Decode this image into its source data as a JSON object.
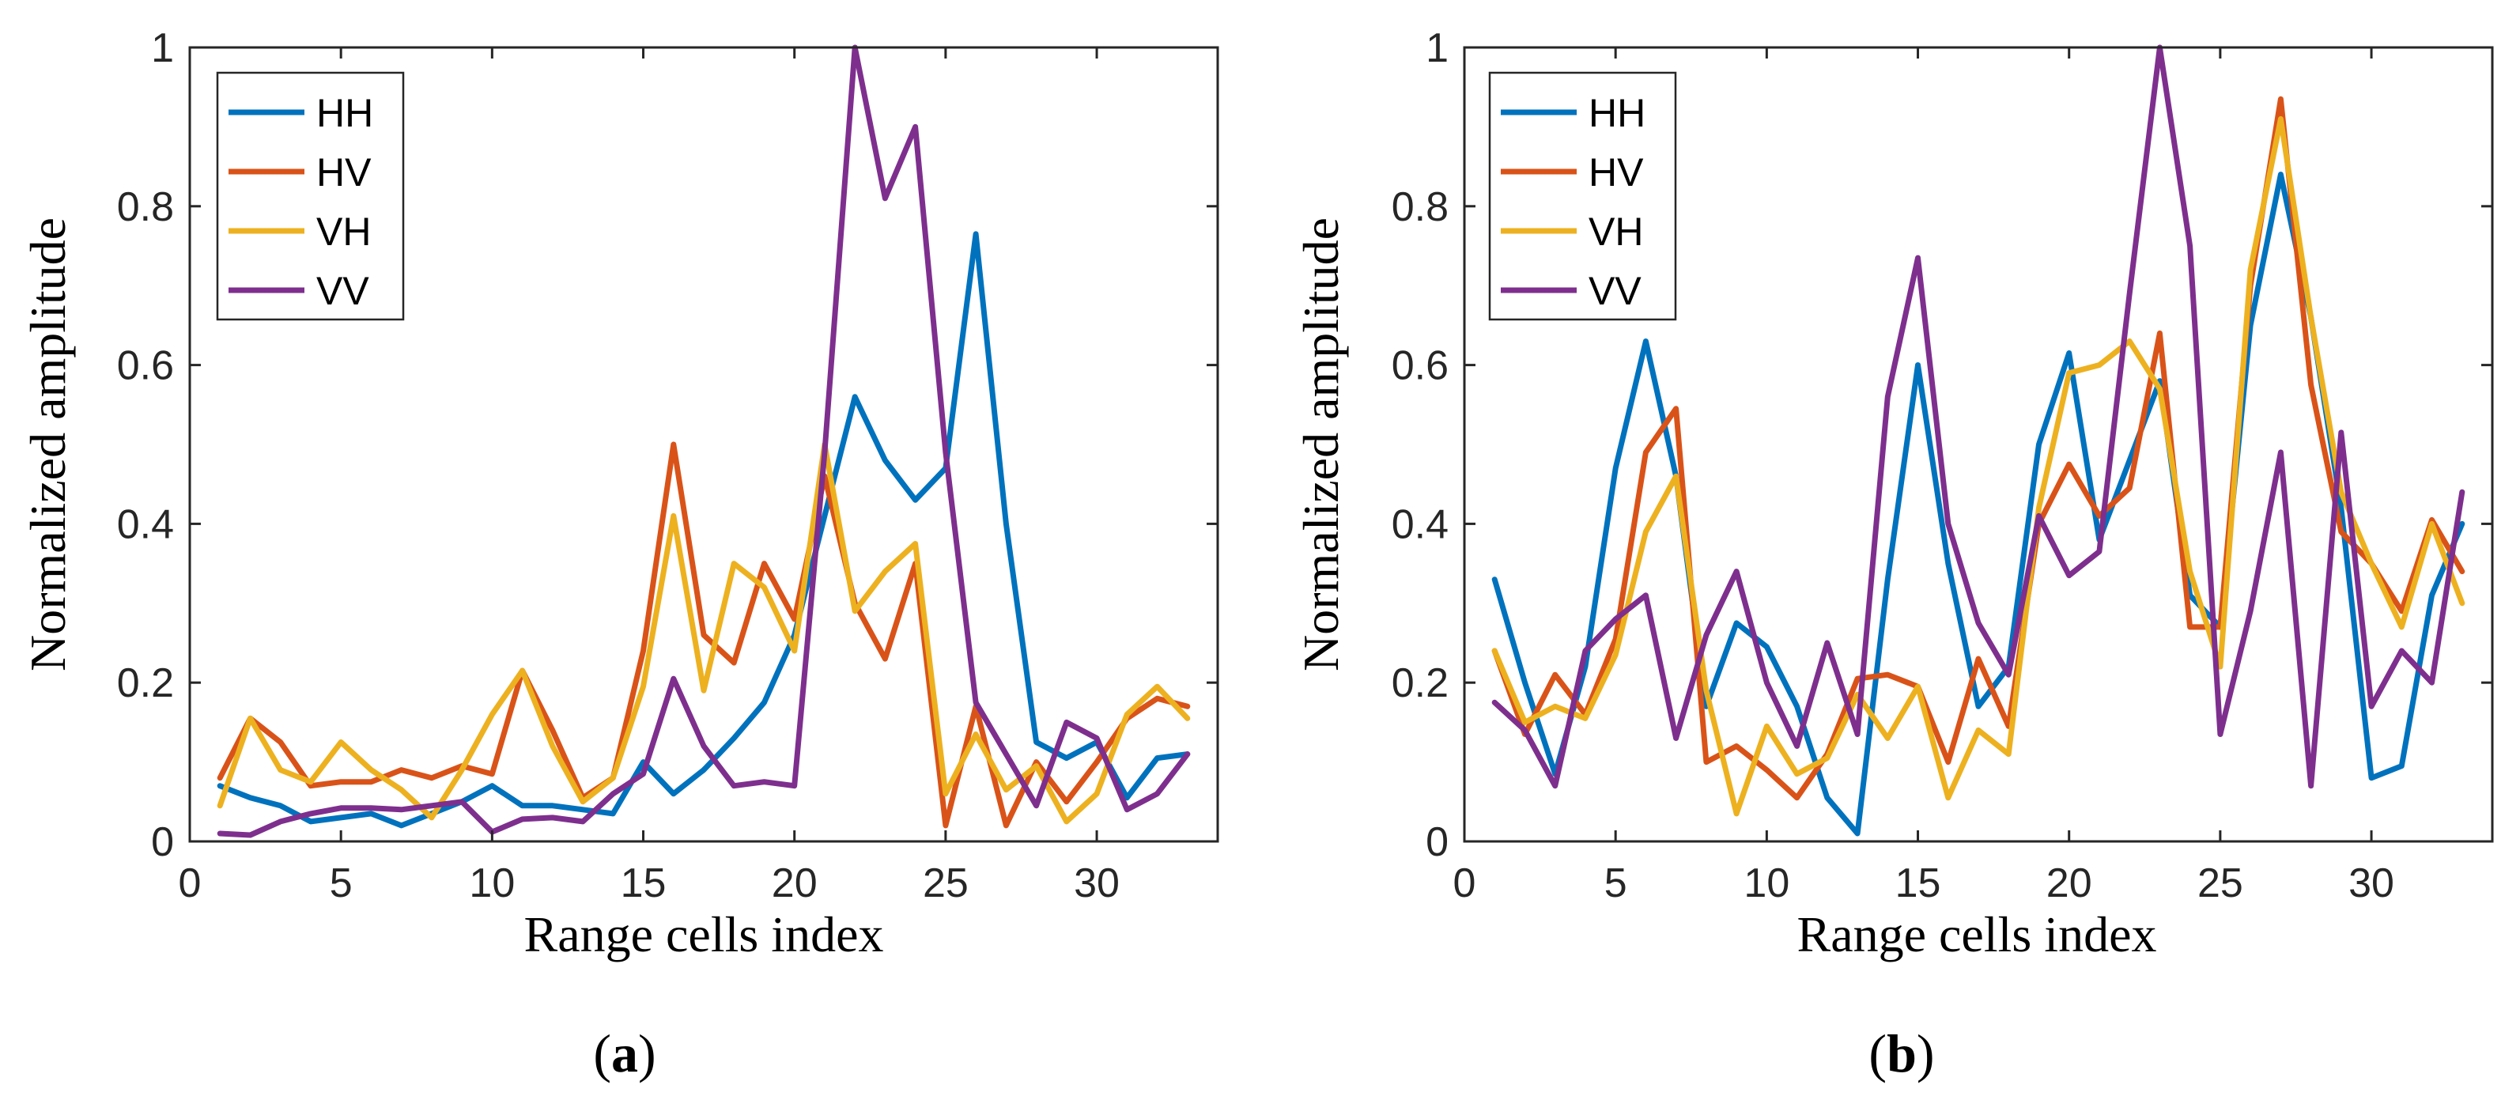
{
  "chart_data": [
    {
      "type": "line",
      "panel": "a",
      "caption_open": "(",
      "caption_label": "a",
      "caption_close": ")",
      "xlabel": "Range cells index",
      "ylabel": "Normalized amplitude",
      "xlim": [
        0,
        34
      ],
      "ylim": [
        0,
        1
      ],
      "xticks": [
        0,
        5,
        10,
        15,
        20,
        25,
        30
      ],
      "yticks": [
        0,
        0.2,
        0.4,
        0.6,
        0.8,
        1
      ],
      "ytick_labels": [
        "0",
        "0.2",
        "0.4",
        "0.6",
        "0.8",
        "1"
      ],
      "legend_position": "top-left",
      "x": [
        1,
        2,
        3,
        4,
        5,
        6,
        7,
        8,
        9,
        10,
        11,
        12,
        13,
        14,
        15,
        16,
        17,
        18,
        19,
        20,
        21,
        22,
        23,
        24,
        25,
        26,
        27,
        28,
        29,
        30,
        31,
        32,
        33
      ],
      "series": [
        {
          "name": "HH",
          "color": "#0072BD",
          "values": [
            0.07,
            0.055,
            0.045,
            0.025,
            0.03,
            0.035,
            0.02,
            0.035,
            0.05,
            0.07,
            0.045,
            0.045,
            0.04,
            0.035,
            0.1,
            0.06,
            0.09,
            0.13,
            0.175,
            0.26,
            0.41,
            0.56,
            0.48,
            0.43,
            0.47,
            0.765,
            0.4,
            0.125,
            0.105,
            0.125,
            0.055,
            0.105,
            0.11
          ]
        },
        {
          "name": "HV",
          "color": "#D95319",
          "values": [
            0.08,
            0.155,
            0.125,
            0.07,
            0.075,
            0.075,
            0.09,
            0.08,
            0.095,
            0.085,
            0.215,
            0.14,
            0.055,
            0.08,
            0.24,
            0.5,
            0.26,
            0.225,
            0.35,
            0.28,
            0.46,
            0.3,
            0.23,
            0.35,
            0.02,
            0.17,
            0.02,
            0.1,
            0.05,
            0.1,
            0.155,
            0.18,
            0.17
          ]
        },
        {
          "name": "VH",
          "color": "#EDB120",
          "values": [
            0.045,
            0.155,
            0.09,
            0.075,
            0.125,
            0.09,
            0.065,
            0.03,
            0.09,
            0.16,
            0.215,
            0.12,
            0.05,
            0.08,
            0.195,
            0.41,
            0.19,
            0.35,
            0.32,
            0.24,
            0.5,
            0.29,
            0.34,
            0.375,
            0.06,
            0.135,
            0.065,
            0.095,
            0.025,
            0.06,
            0.16,
            0.195,
            0.155
          ]
        },
        {
          "name": "VV",
          "color": "#7E2F8E",
          "values": [
            0.01,
            0.008,
            0.025,
            0.035,
            0.042,
            0.042,
            0.04,
            0.045,
            0.05,
            0.012,
            0.028,
            0.03,
            0.025,
            0.06,
            0.085,
            0.205,
            0.12,
            0.07,
            0.075,
            0.07,
            0.49,
            1.0,
            0.81,
            0.9,
            0.49,
            0.175,
            0.11,
            0.045,
            0.15,
            0.13,
            0.04,
            0.06,
            0.11
          ]
        }
      ]
    },
    {
      "type": "line",
      "panel": "b",
      "caption_open": "(",
      "caption_label": "b",
      "caption_close": ")",
      "xlabel": "Range cells index",
      "ylabel": "Normalized amplitude",
      "xlim": [
        0,
        34
      ],
      "ylim": [
        0,
        1
      ],
      "xticks": [
        0,
        5,
        10,
        15,
        20,
        25,
        30
      ],
      "yticks": [
        0,
        0.2,
        0.4,
        0.6,
        0.8,
        1
      ],
      "ytick_labels": [
        "0",
        "0.2",
        "0.4",
        "0.6",
        "0.8",
        "1"
      ],
      "legend_position": "top-left",
      "x": [
        1,
        2,
        3,
        4,
        5,
        6,
        7,
        8,
        9,
        10,
        11,
        12,
        13,
        14,
        15,
        16,
        17,
        18,
        19,
        20,
        21,
        22,
        23,
        24,
        25,
        26,
        27,
        28,
        29,
        30,
        31,
        32,
        33
      ],
      "series": [
        {
          "name": "HH",
          "color": "#0072BD",
          "values": [
            0.33,
            0.2,
            0.085,
            0.22,
            0.47,
            0.63,
            0.46,
            0.17,
            0.275,
            0.245,
            0.17,
            0.055,
            0.01,
            0.33,
            0.6,
            0.35,
            0.17,
            0.22,
            0.5,
            0.615,
            0.38,
            0.48,
            0.58,
            0.31,
            0.27,
            0.65,
            0.84,
            0.66,
            0.42,
            0.08,
            0.095,
            0.31,
            0.4
          ]
        },
        {
          "name": "HV",
          "color": "#D95319",
          "values": [
            0.24,
            0.135,
            0.21,
            0.16,
            0.255,
            0.49,
            0.545,
            0.1,
            0.12,
            0.09,
            0.055,
            0.11,
            0.205,
            0.21,
            0.195,
            0.1,
            0.23,
            0.145,
            0.4,
            0.475,
            0.41,
            0.445,
            0.64,
            0.27,
            0.27,
            0.7,
            0.935,
            0.575,
            0.39,
            0.35,
            0.29,
            0.405,
            0.34
          ]
        },
        {
          "name": "VH",
          "color": "#EDB120",
          "values": [
            0.24,
            0.15,
            0.17,
            0.155,
            0.235,
            0.39,
            0.46,
            0.19,
            0.035,
            0.145,
            0.085,
            0.105,
            0.185,
            0.13,
            0.195,
            0.055,
            0.14,
            0.11,
            0.42,
            0.59,
            0.6,
            0.63,
            0.57,
            0.34,
            0.22,
            0.72,
            0.91,
            0.66,
            0.44,
            0.35,
            0.27,
            0.4,
            0.3
          ]
        },
        {
          "name": "VV",
          "color": "#7E2F8E",
          "values": [
            0.175,
            0.14,
            0.07,
            0.24,
            0.28,
            0.31,
            0.13,
            0.26,
            0.34,
            0.2,
            0.12,
            0.25,
            0.135,
            0.56,
            0.735,
            0.4,
            0.275,
            0.21,
            0.41,
            0.335,
            0.365,
            0.69,
            1.0,
            0.75,
            0.135,
            0.29,
            0.49,
            0.07,
            0.515,
            0.17,
            0.24,
            0.2,
            0.44
          ]
        }
      ]
    }
  ]
}
